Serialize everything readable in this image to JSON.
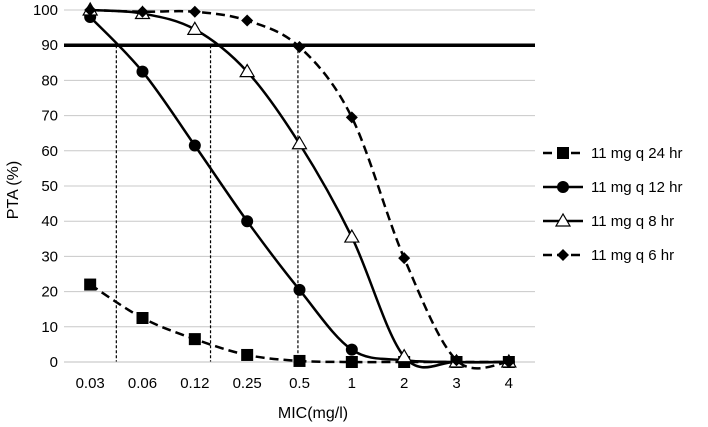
{
  "chart_data": {
    "type": "line",
    "title": "",
    "xlabel": "MIC(mg/l)",
    "ylabel": "PTA (%)",
    "categories": [
      "0.03",
      "0.06",
      "0.12",
      "0.25",
      "0.5",
      "1",
      "2",
      "3",
      "4"
    ],
    "ylim": [
      0,
      100
    ],
    "yticks": [
      0,
      10,
      20,
      30,
      40,
      50,
      60,
      70,
      80,
      90,
      100
    ],
    "grid": true,
    "legend_position": "right",
    "threshold": {
      "value": 90
    },
    "drop_lines": [
      {
        "x_index": 0.5
      },
      {
        "x_index": 2.3
      },
      {
        "x_index": 3.97
      }
    ],
    "series": [
      {
        "name": "11 mg q 24 hr",
        "marker": "square",
        "dash": "dashed",
        "values": [
          22,
          12.5,
          6.5,
          2,
          0.3,
          0,
          0,
          0,
          0
        ]
      },
      {
        "name": "11 mg q 12 hr",
        "marker": "circle",
        "dash": "solid",
        "values": [
          98,
          82.5,
          61.5,
          40,
          20.5,
          3.5,
          0.5,
          0,
          0
        ]
      },
      {
        "name": "11 mg q 8 hr",
        "marker": "triangle",
        "dash": "solid",
        "values": [
          100,
          99,
          94.5,
          82.5,
          62,
          35.5,
          1.5,
          0,
          0
        ]
      },
      {
        "name": "11 mg q 6 hr",
        "marker": "diamond",
        "dash": "dashed",
        "values": [
          100,
          99.5,
          99.5,
          97,
          89.5,
          69.5,
          29.5,
          0.5,
          0
        ]
      }
    ]
  }
}
